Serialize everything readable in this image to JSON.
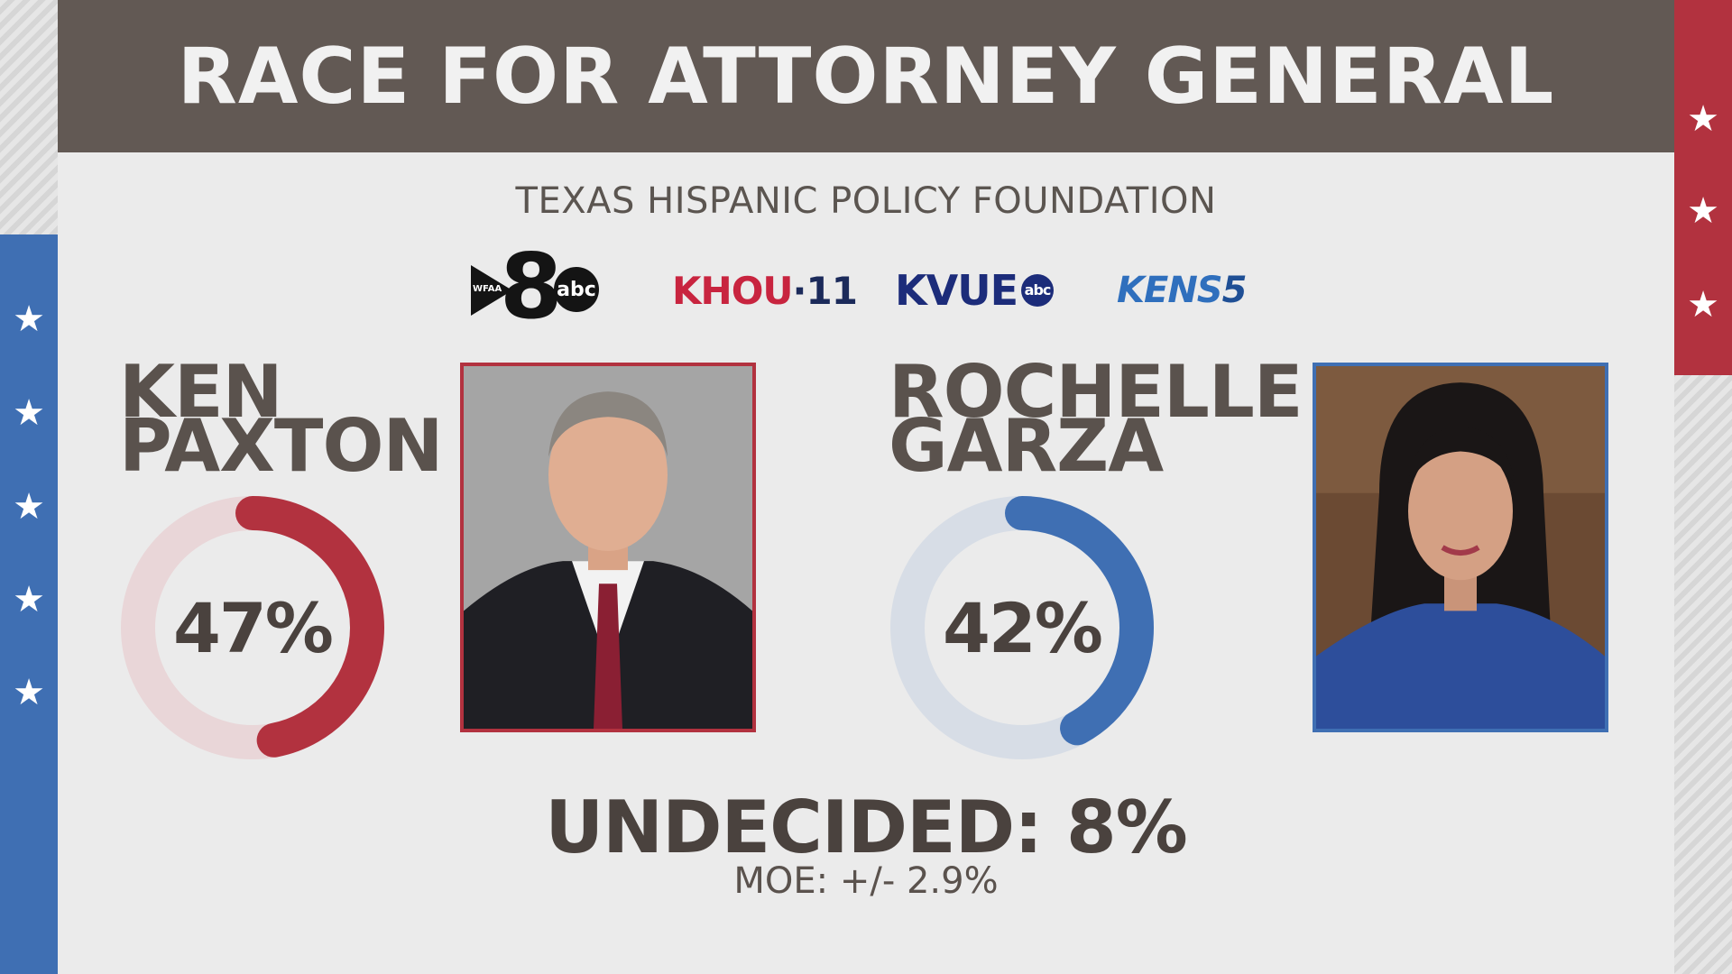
{
  "header": {
    "title": "RACE FOR ATTORNEY GENERAL"
  },
  "subtitle": "TEXAS HISPANIC POLICY FOUNDATION",
  "logos": [
    {
      "name": "wfaa",
      "text_small": "WFAA",
      "number": "8",
      "network": "abc"
    },
    {
      "name": "khou",
      "text": "KHOU",
      "number": "11"
    },
    {
      "name": "kvue",
      "text": "KVUE",
      "network": "abc"
    },
    {
      "name": "kens",
      "text": "KENS",
      "number": "5"
    }
  ],
  "candidates": [
    {
      "name_line1": "KEN",
      "name_line2": "PAXTON",
      "percent_label": "47%",
      "percent": 47,
      "color": "#b2323f",
      "track_color": "#e9d6d8"
    },
    {
      "name_line1": "ROCHELLE",
      "name_line2": "GARZA",
      "percent_label": "42%",
      "percent": 42,
      "color": "#3f6fb3",
      "track_color": "#d7dde6"
    }
  ],
  "undecided": {
    "label": "UNDECIDED:",
    "value": "8%"
  },
  "moe": "MOE: +/- 2.9%",
  "colors": {
    "header_bg": "#625954",
    "republican": "#b2323f",
    "democrat": "#3f6fb3",
    "text": "#5a524d"
  }
}
